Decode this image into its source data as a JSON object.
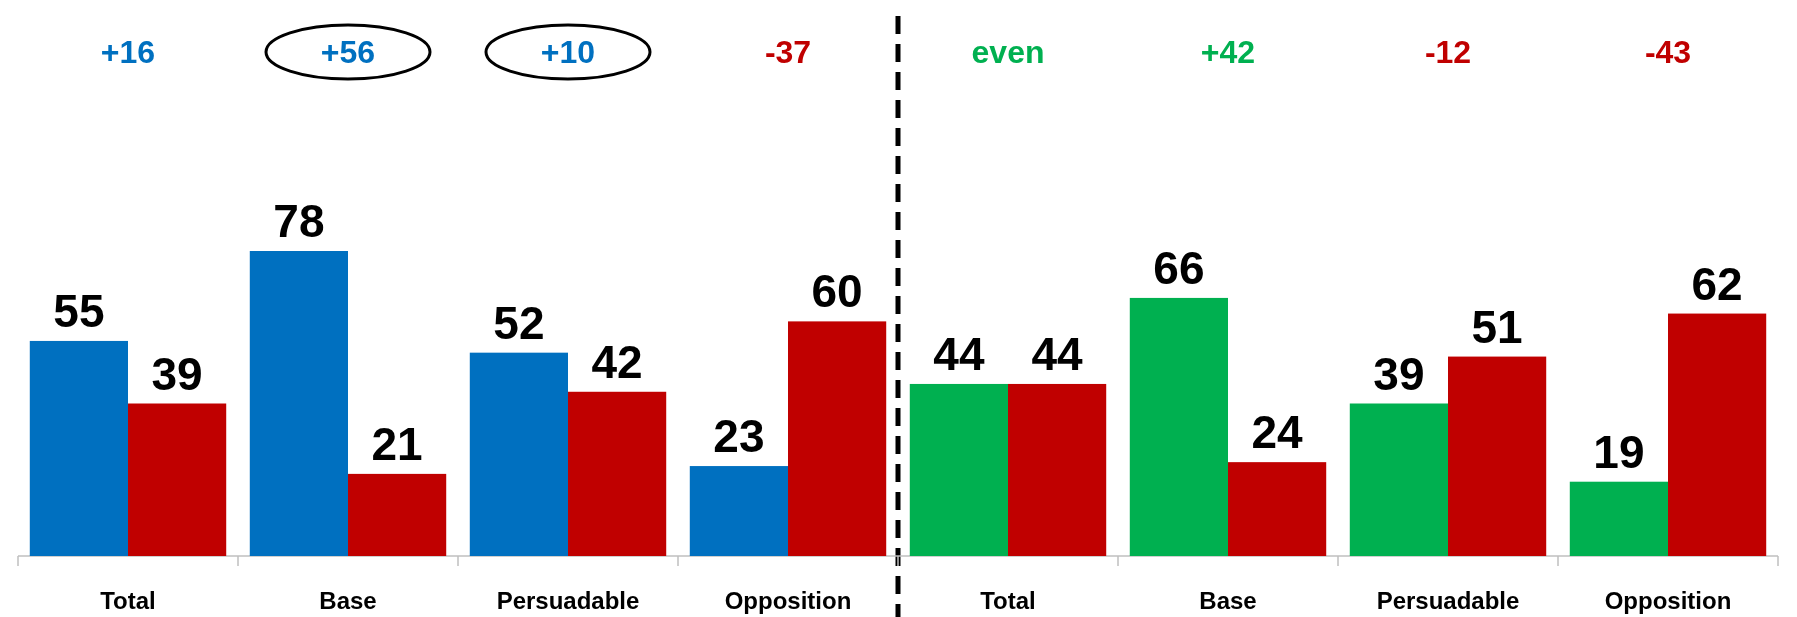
{
  "chart_data": {
    "type": "bar",
    "categories": [
      "Total",
      "Base",
      "Persuadable",
      "Opposition",
      "Total",
      "Base",
      "Persuadable",
      "Opposition"
    ],
    "series": [
      {
        "colors": [
          "#0070c0",
          "#0070c0",
          "#0070c0",
          "#0070c0",
          "#00b050",
          "#00b050",
          "#00b050",
          "#00b050"
        ],
        "values": [
          55,
          78,
          52,
          23,
          44,
          66,
          39,
          19
        ]
      },
      {
        "color": "#c00000",
        "values": [
          39,
          21,
          42,
          60,
          44,
          24,
          51,
          62
        ]
      }
    ],
    "data_labels": true,
    "annotations": [
      "+16",
      "+56",
      "+10",
      "-37",
      "even",
      "+42",
      "-12",
      "-43"
    ]
  }
}
